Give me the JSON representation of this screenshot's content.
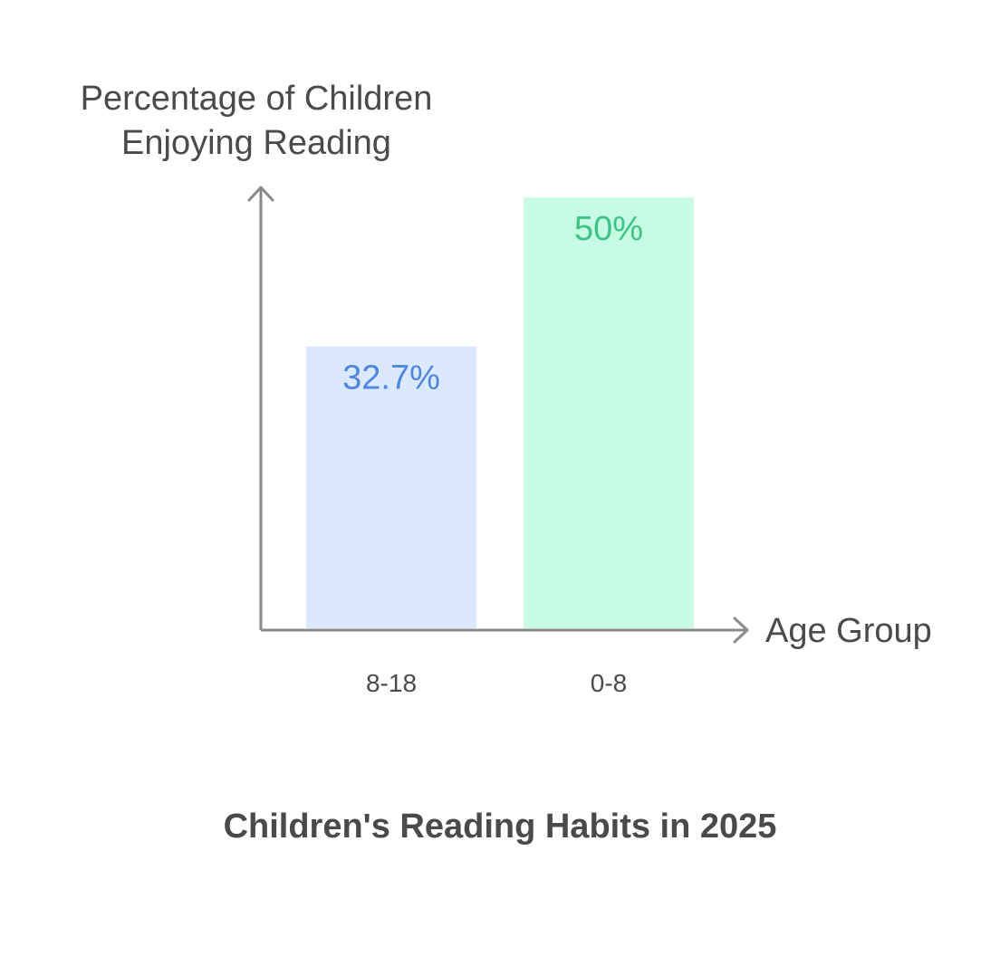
{
  "chart_data": {
    "type": "bar",
    "title": "Children's Reading Habits in 2025",
    "ylabel_lines": [
      "Percentage of Children",
      "Enjoying Reading"
    ],
    "xlabel": "Age Group",
    "categories": [
      "8-18",
      "0-8"
    ],
    "values": [
      32.7,
      50
    ],
    "value_labels": [
      "32.7%",
      "50%"
    ],
    "ylim": [
      0,
      50
    ],
    "grid": false,
    "bar_colors": [
      "#dce8fd",
      "#c8fbe4"
    ],
    "label_colors": [
      "#4f86e0",
      "#3cc487"
    ],
    "axis_color": "#8a8a8a"
  }
}
